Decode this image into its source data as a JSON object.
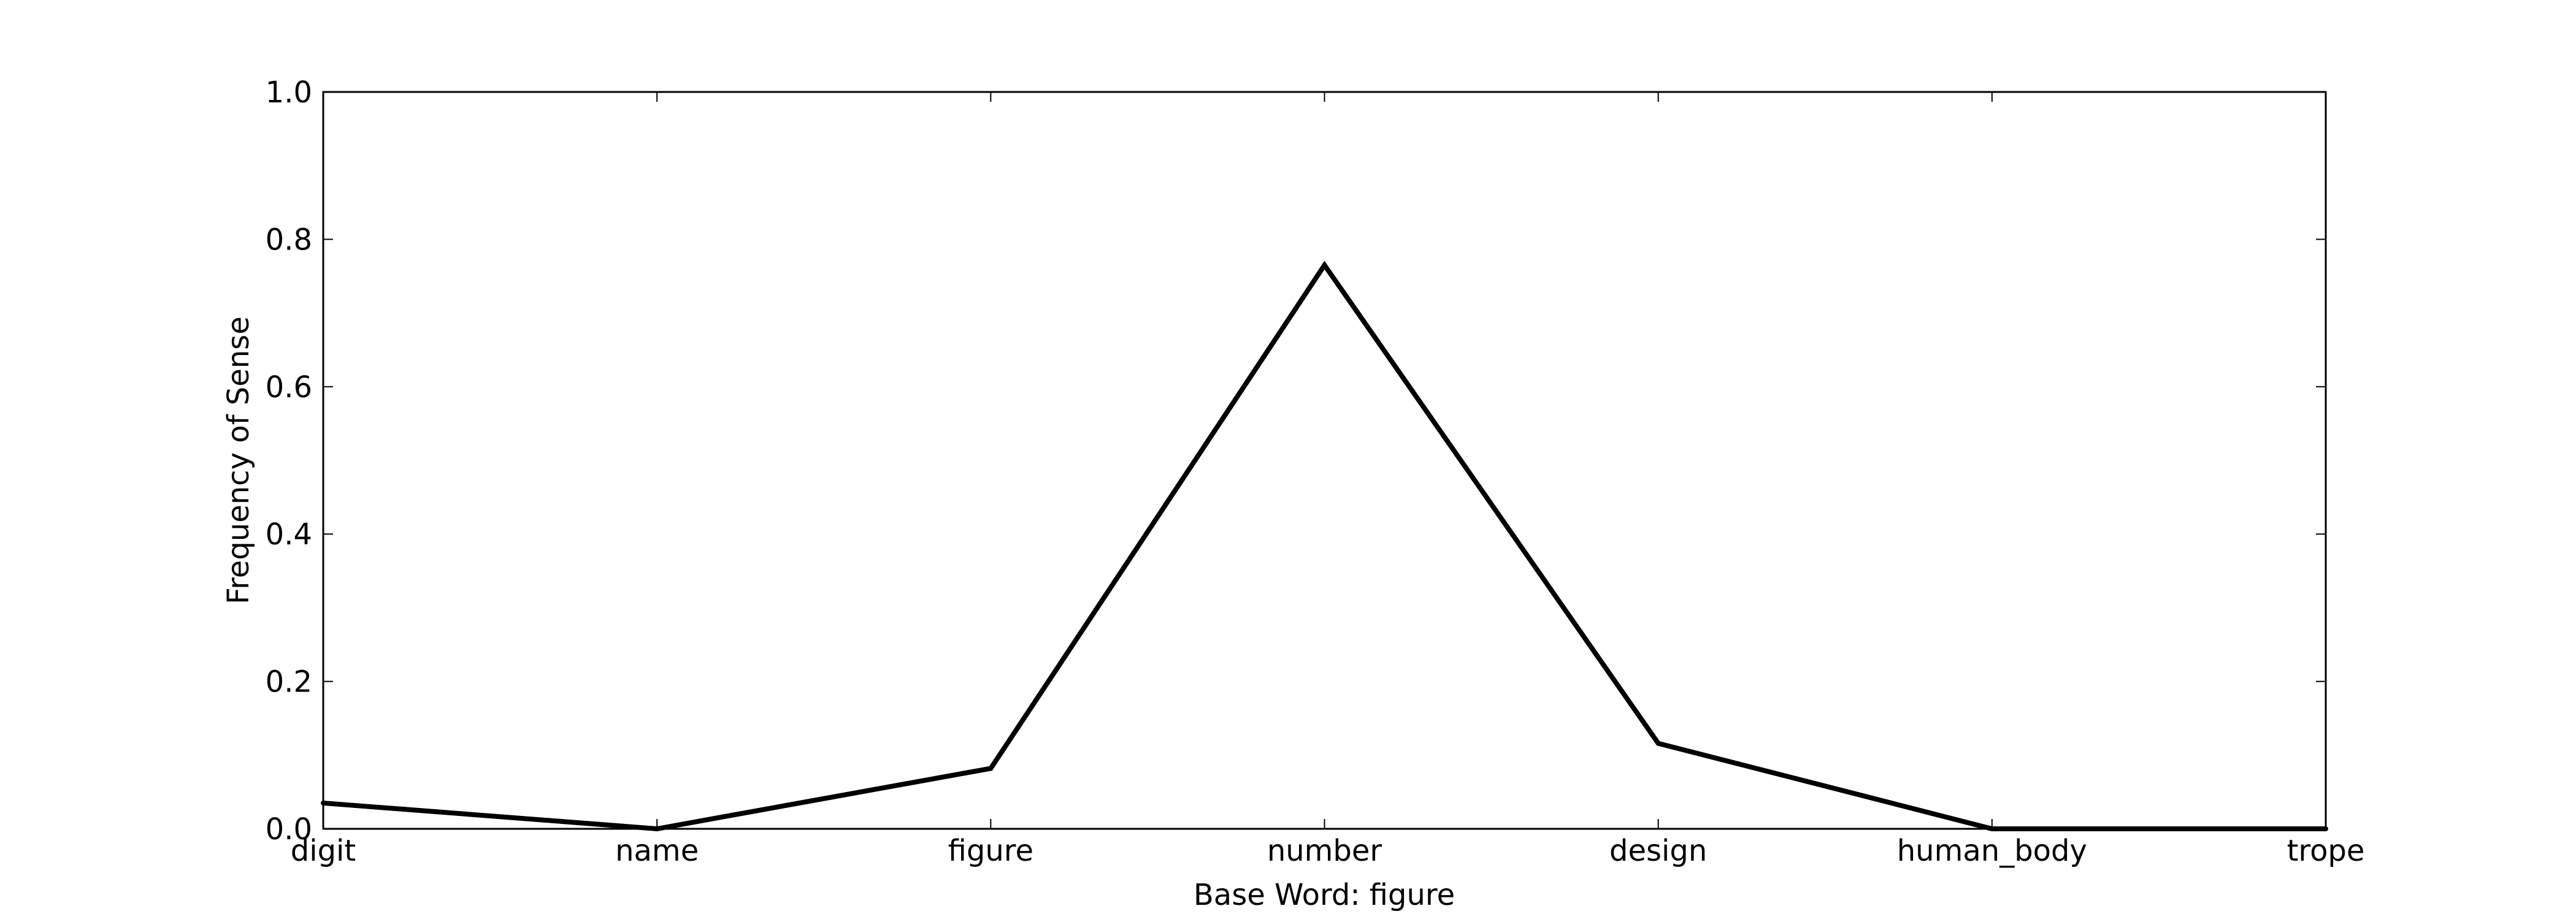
{
  "chart_data": {
    "type": "line",
    "categories": [
      "digit",
      "name",
      "figure",
      "number",
      "design",
      "human_body",
      "trope"
    ],
    "series": [
      {
        "values": [
          0.035,
          0.0,
          0.082,
          0.765,
          0.116,
          0.0,
          0.0
        ],
        "color": "#000000"
      }
    ],
    "xlabel": "Base Word: figure",
    "ylabel": "Frequency of Sense",
    "ylim": [
      0,
      1.0
    ],
    "yticks": [
      "0.0",
      "0.2",
      "0.4",
      "0.6",
      "0.8",
      "1.0"
    ],
    "grid": false
  }
}
